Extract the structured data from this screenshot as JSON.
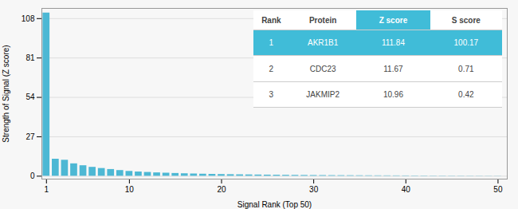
{
  "chart_data": {
    "type": "bar",
    "xlabel": "Signal Rank (Top 50)",
    "ylabel": "Strength of Signal (Z score)",
    "x": [
      1,
      2,
      3,
      4,
      5,
      6,
      7,
      8,
      9,
      10,
      11,
      12,
      13,
      14,
      15,
      16,
      17,
      18,
      19,
      20,
      21,
      22,
      23,
      24,
      25,
      26,
      27,
      28,
      29,
      30,
      31,
      32,
      33,
      34,
      35,
      36,
      37,
      38,
      39,
      40,
      41,
      42,
      43,
      44,
      45,
      46,
      47,
      48,
      49,
      50
    ],
    "values": [
      111.84,
      11.67,
      10.96,
      8.5,
      7.2,
      6.1,
      5.3,
      4.6,
      3.9,
      3.3,
      2.9,
      2.6,
      2.3,
      2.1,
      1.9,
      1.7,
      1.55,
      1.4,
      1.28,
      1.17,
      1.07,
      0.98,
      0.9,
      0.83,
      0.76,
      0.7,
      0.64,
      0.59,
      0.54,
      0.5,
      0.46,
      0.42,
      0.39,
      0.36,
      0.33,
      0.3,
      0.28,
      0.26,
      0.24,
      0.22,
      0.2,
      0.19,
      0.17,
      0.16,
      0.15,
      0.14,
      0.13,
      0.12,
      0.11,
      0.1
    ],
    "color": "#4db8d4",
    "xlim": [
      0.5,
      51
    ],
    "xticks": [
      1,
      10,
      20,
      30,
      40,
      50
    ],
    "ylim": [
      -2,
      115
    ],
    "yticks": [
      0,
      27,
      54,
      81,
      108
    ],
    "grid": true,
    "table": {
      "headers": [
        "Rank",
        "Protein",
        "Z score",
        "S score"
      ],
      "rows": [
        [
          "1",
          "AKR1B1",
          "111.84",
          "100.17"
        ],
        [
          "2",
          "CDC23",
          "11.67",
          "0.71"
        ],
        [
          "3",
          "JAKMIP2",
          "10.96",
          "0.42"
        ]
      ],
      "color": "#40bcd8"
    }
  }
}
